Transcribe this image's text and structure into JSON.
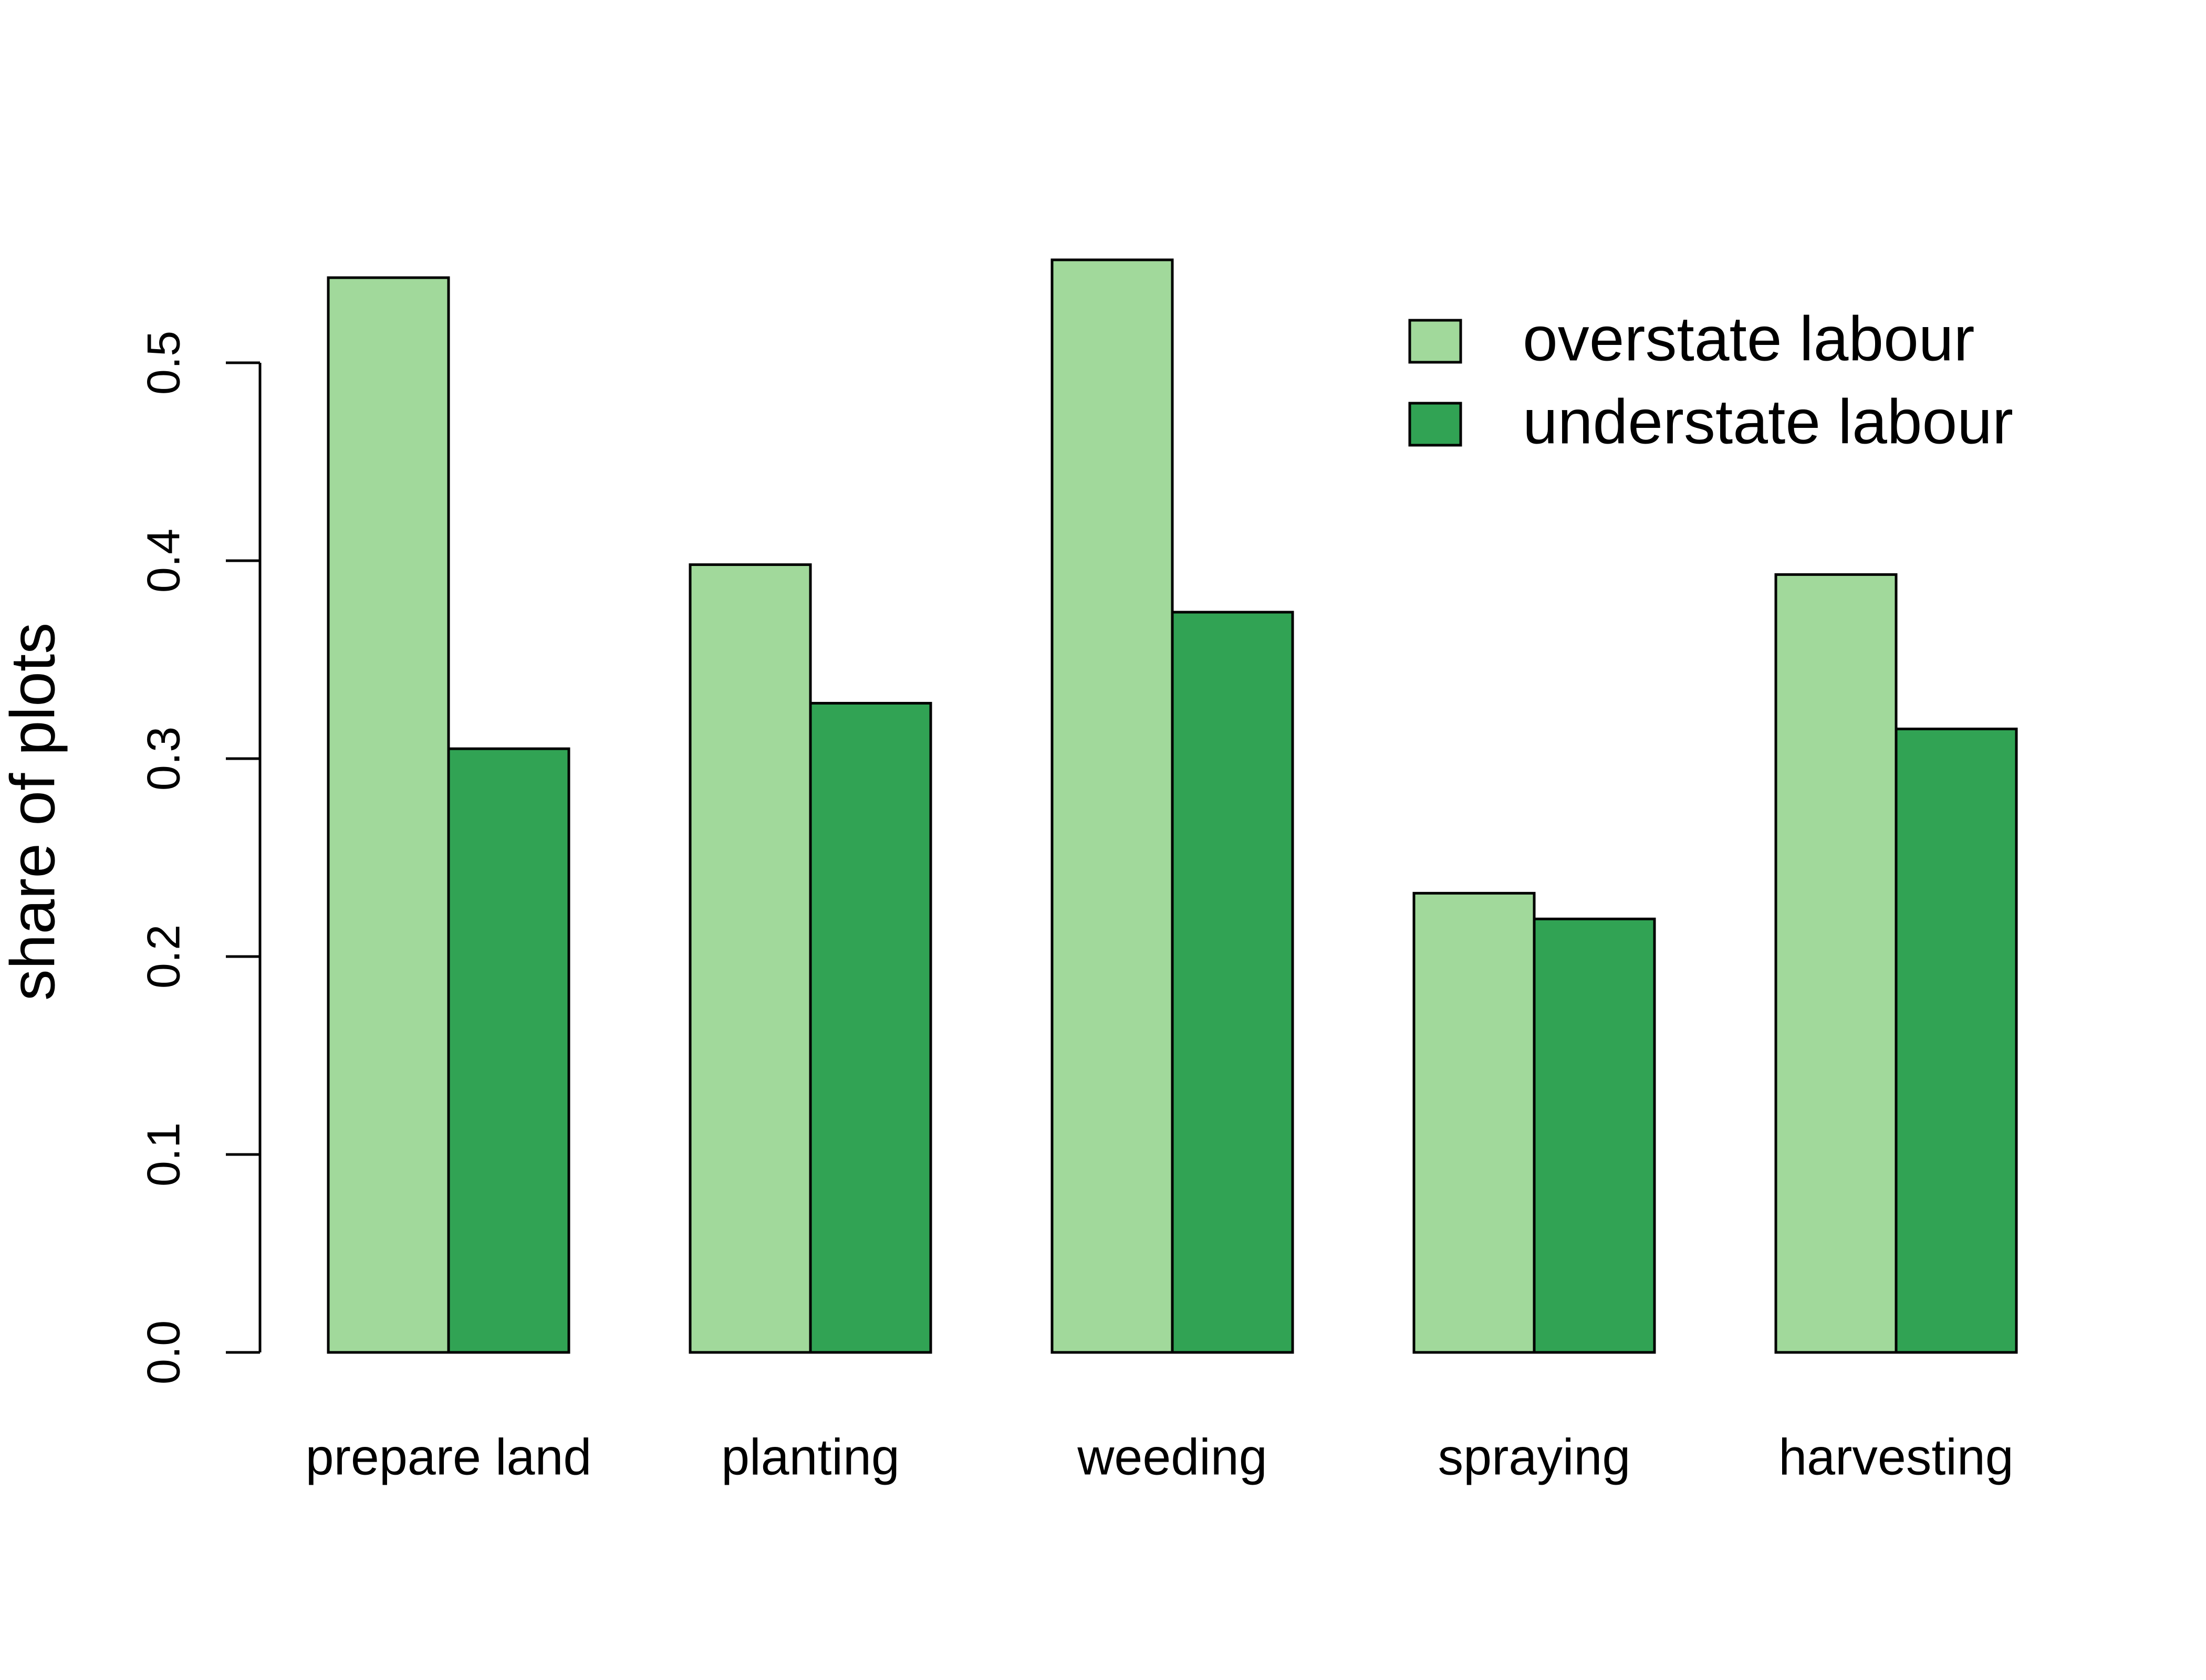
{
  "chart_data": {
    "type": "bar",
    "y_label": "share of plots",
    "categories": [
      "prepare land",
      "planting",
      "weeding",
      "spraying",
      "harvesting"
    ],
    "series": [
      {
        "name": "overstate labour",
        "color": "#A1D99B",
        "values": [
          0.543,
          0.398,
          0.552,
          0.232,
          0.393
        ]
      },
      {
        "name": "understate labour",
        "color": "#31A354",
        "values": [
          0.305,
          0.328,
          0.374,
          0.219,
          0.315
        ]
      }
    ],
    "ylim": [
      0,
      0.6
    ],
    "yticks": [
      {
        "value": 0,
        "label": "0.0"
      },
      0.1,
      0.2,
      0.3,
      0.4,
      0.5
    ],
    "grid": false,
    "legend": "top-right"
  }
}
